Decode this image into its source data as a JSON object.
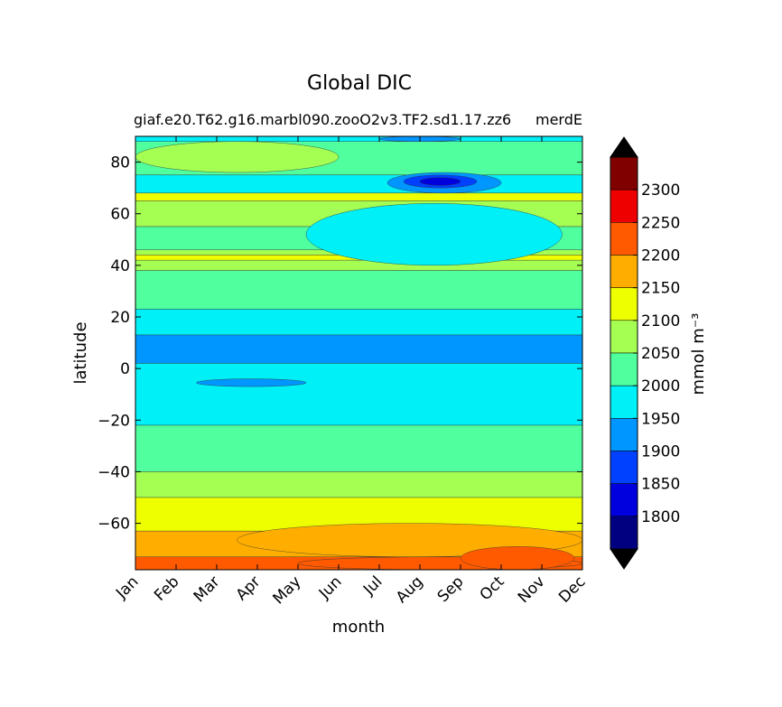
{
  "chart_data": {
    "type": "heatmap",
    "title": "Global DIC",
    "subtitle_left": "giaf.e20.T62.g16.marbl090.zooO2v3.TF2.sd1.17.zz6",
    "subtitle_right": "merdE",
    "xlabel": "month",
    "ylabel": "latitude",
    "x": [
      "Jan",
      "Feb",
      "Mar",
      "Apr",
      "May",
      "Jun",
      "Jul",
      "Aug",
      "Sep",
      "Oct",
      "Nov",
      "Dec"
    ],
    "xlim": [
      0,
      11
    ],
    "ylim": [
      -78,
      90
    ],
    "yticks": [
      -60,
      -40,
      -20,
      0,
      20,
      40,
      60,
      80
    ],
    "colorbar": {
      "label": "mmol m⁻³",
      "levels": [
        1750,
        1800,
        1850,
        1900,
        1950,
        2000,
        2050,
        2100,
        2150,
        2200,
        2250,
        2300,
        2350
      ],
      "tick_labels": [
        1800,
        1850,
        1900,
        1950,
        2000,
        2050,
        2100,
        2150,
        2200,
        2250,
        2300
      ],
      "colors": [
        "#000080",
        "#0000de",
        "#0040ff",
        "#0096ff",
        "#00f0f8",
        "#50ff9e",
        "#a4ff52",
        "#eeff00",
        "#ffae00",
        "#ff5a00",
        "#ee0000",
        "#800000"
      ],
      "extend_color": "#000000"
    },
    "bands": [
      {
        "lat": [
          88,
          90
        ],
        "value": 1960
      },
      {
        "lat": [
          75,
          88
        ],
        "value": 2010
      },
      {
        "lat": [
          68,
          75
        ],
        "value": 1975
      },
      {
        "lat": [
          65,
          68
        ],
        "value": 2100
      },
      {
        "lat": [
          55,
          65
        ],
        "value": 2050
      },
      {
        "lat": [
          46,
          55
        ],
        "value": 2030
      },
      {
        "lat": [
          44,
          46
        ],
        "value": 2060
      },
      {
        "lat": [
          42,
          44
        ],
        "value": 2110
      },
      {
        "lat": [
          38,
          42
        ],
        "value": 2060
      },
      {
        "lat": [
          23,
          38
        ],
        "value": 2020
      },
      {
        "lat": [
          13,
          23
        ],
        "value": 1975
      },
      {
        "lat": [
          2,
          13
        ],
        "value": 1925
      },
      {
        "lat": [
          -22,
          2
        ],
        "value": 1975
      },
      {
        "lat": [
          -40,
          -22
        ],
        "value": 2020
      },
      {
        "lat": [
          -50,
          -40
        ],
        "value": 2070
      },
      {
        "lat": [
          -63,
          -50
        ],
        "value": 2120
      },
      {
        "lat": [
          -73,
          -63
        ],
        "value": 2170
      },
      {
        "lat": [
          -78,
          -73
        ],
        "value": 2220
      }
    ],
    "features": [
      {
        "month": [
          6.2,
          9.0
        ],
        "lat": [
          68,
          76
        ],
        "value": 1925
      },
      {
        "month": [
          6.6,
          8.4
        ],
        "lat": [
          70,
          75
        ],
        "value": 1875
      },
      {
        "month": [
          7.0,
          8.0
        ],
        "lat": [
          71,
          74
        ],
        "value": 1825
      },
      {
        "month": [
          6.0,
          8.0
        ],
        "lat": [
          88,
          90
        ],
        "value": 1925
      },
      {
        "month": [
          1.5,
          4.2
        ],
        "lat": [
          -7,
          -4
        ],
        "value": 1925
      },
      {
        "month": [
          4.2,
          10.5
        ],
        "lat": [
          40,
          64
        ],
        "value": 1975
      },
      {
        "month": [
          0.0,
          5.0
        ],
        "lat": [
          76,
          88
        ],
        "value": 2060
      },
      {
        "month": [
          2.5,
          11.0
        ],
        "lat": [
          -73,
          -60
        ],
        "value": 2170
      },
      {
        "month": [
          4.0,
          11.0
        ],
        "lat": [
          -78,
          -73
        ],
        "value": 2220
      },
      {
        "month": [
          8.0,
          10.8
        ],
        "lat": [
          -78,
          -69
        ],
        "value": 2230
      }
    ]
  }
}
